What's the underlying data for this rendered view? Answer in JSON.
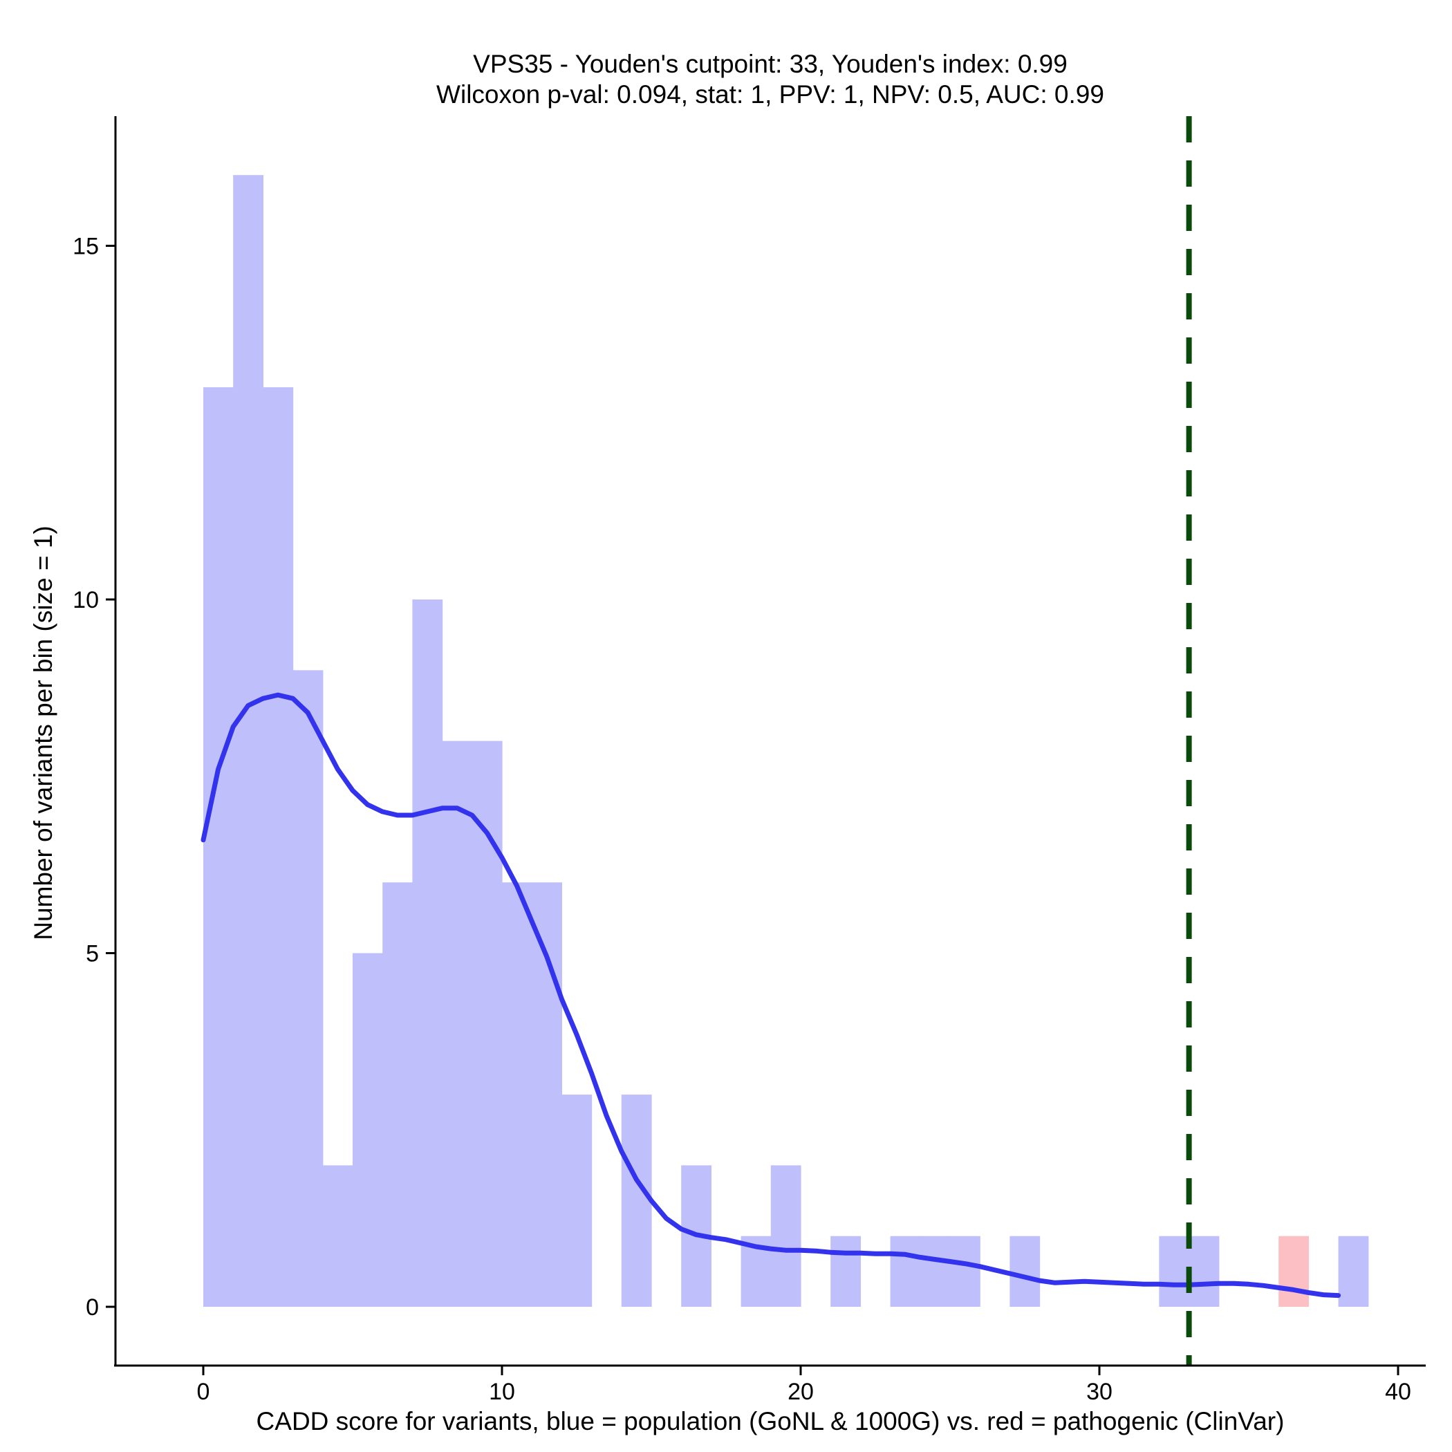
{
  "chart_data": {
    "type": "bar",
    "title": "VPS35 - Youden's cutpoint: 33, Youden's index: 0.99",
    "subtitle": "Wilcoxon p-val: 0.094, stat: 1, PPV: 1, NPV: 0.5, AUC: 0.99",
    "xlabel": "CADD score for variants, blue = population (GoNL & 1000G) vs. red = pathogenic (ClinVar)",
    "ylabel": "Number of variants per bin (size = 1)",
    "xlim": [
      -3,
      41
    ],
    "ylim": [
      -0.8,
      16.9
    ],
    "x_ticks": [
      0,
      10,
      20,
      30,
      40
    ],
    "y_ticks": [
      0,
      5,
      10,
      15
    ],
    "bin_width": 1,
    "colors": {
      "population": "#bfbffc",
      "pathogenic": "#fcbfc4",
      "density": "#3333ee",
      "cutpoint": "#0a4a0a"
    },
    "series": [
      {
        "name": "population",
        "bins": [
          [
            0,
            13
          ],
          [
            1,
            16
          ],
          [
            2,
            13
          ],
          [
            3,
            9
          ],
          [
            4,
            2
          ],
          [
            5,
            5
          ],
          [
            6,
            6
          ],
          [
            7,
            10
          ],
          [
            8,
            8
          ],
          [
            9,
            8
          ],
          [
            10,
            6
          ],
          [
            11,
            6
          ],
          [
            12,
            3
          ],
          [
            14,
            3
          ],
          [
            16,
            2
          ],
          [
            18,
            1
          ],
          [
            19,
            2
          ],
          [
            21,
            1
          ],
          [
            23,
            1
          ],
          [
            24,
            1
          ],
          [
            25,
            1
          ],
          [
            27,
            1
          ],
          [
            32,
            1
          ],
          [
            33,
            1
          ],
          [
            38,
            1
          ]
        ]
      },
      {
        "name": "pathogenic",
        "bins": [
          [
            36,
            1
          ]
        ]
      }
    ],
    "density_curve": [
      [
        0,
        6.6
      ],
      [
        0.5,
        7.6
      ],
      [
        1,
        8.2
      ],
      [
        1.5,
        8.5
      ],
      [
        2,
        8.6
      ],
      [
        2.5,
        8.65
      ],
      [
        3,
        8.6
      ],
      [
        3.5,
        8.4
      ],
      [
        4,
        8.0
      ],
      [
        4.5,
        7.6
      ],
      [
        5,
        7.3
      ],
      [
        5.5,
        7.1
      ],
      [
        6,
        7.0
      ],
      [
        6.5,
        6.95
      ],
      [
        7,
        6.95
      ],
      [
        7.5,
        7.0
      ],
      [
        8,
        7.05
      ],
      [
        8.5,
        7.05
      ],
      [
        9,
        6.95
      ],
      [
        9.5,
        6.7
      ],
      [
        10,
        6.35
      ],
      [
        10.5,
        5.95
      ],
      [
        11,
        5.45
      ],
      [
        11.5,
        4.95
      ],
      [
        12,
        4.35
      ],
      [
        12.5,
        3.85
      ],
      [
        13,
        3.3
      ],
      [
        13.5,
        2.7
      ],
      [
        14,
        2.2
      ],
      [
        14.5,
        1.8
      ],
      [
        15,
        1.5
      ],
      [
        15.5,
        1.25
      ],
      [
        16,
        1.1
      ],
      [
        16.5,
        1.02
      ],
      [
        17,
        0.98
      ],
      [
        17.5,
        0.95
      ],
      [
        18,
        0.9
      ],
      [
        18.5,
        0.85
      ],
      [
        19,
        0.82
      ],
      [
        19.5,
        0.8
      ],
      [
        20,
        0.8
      ],
      [
        20.5,
        0.79
      ],
      [
        21,
        0.77
      ],
      [
        21.5,
        0.76
      ],
      [
        22,
        0.76
      ],
      [
        22.5,
        0.75
      ],
      [
        23,
        0.75
      ],
      [
        23.5,
        0.74
      ],
      [
        24,
        0.7
      ],
      [
        24.5,
        0.67
      ],
      [
        25,
        0.64
      ],
      [
        25.5,
        0.61
      ],
      [
        26,
        0.57
      ],
      [
        26.5,
        0.52
      ],
      [
        27,
        0.47
      ],
      [
        27.5,
        0.42
      ],
      [
        28,
        0.37
      ],
      [
        28.5,
        0.34
      ],
      [
        29,
        0.35
      ],
      [
        29.5,
        0.36
      ],
      [
        30,
        0.35
      ],
      [
        30.5,
        0.34
      ],
      [
        31,
        0.33
      ],
      [
        31.5,
        0.32
      ],
      [
        32,
        0.32
      ],
      [
        32.5,
        0.31
      ],
      [
        33,
        0.31
      ],
      [
        33.5,
        0.32
      ],
      [
        34,
        0.33
      ],
      [
        34.5,
        0.33
      ],
      [
        35,
        0.32
      ],
      [
        35.5,
        0.3
      ],
      [
        36,
        0.27
      ],
      [
        36.5,
        0.24
      ],
      [
        37,
        0.2
      ],
      [
        37.5,
        0.17
      ],
      [
        38,
        0.16
      ]
    ],
    "cutpoint": 33,
    "grid": false,
    "legend": "none"
  }
}
